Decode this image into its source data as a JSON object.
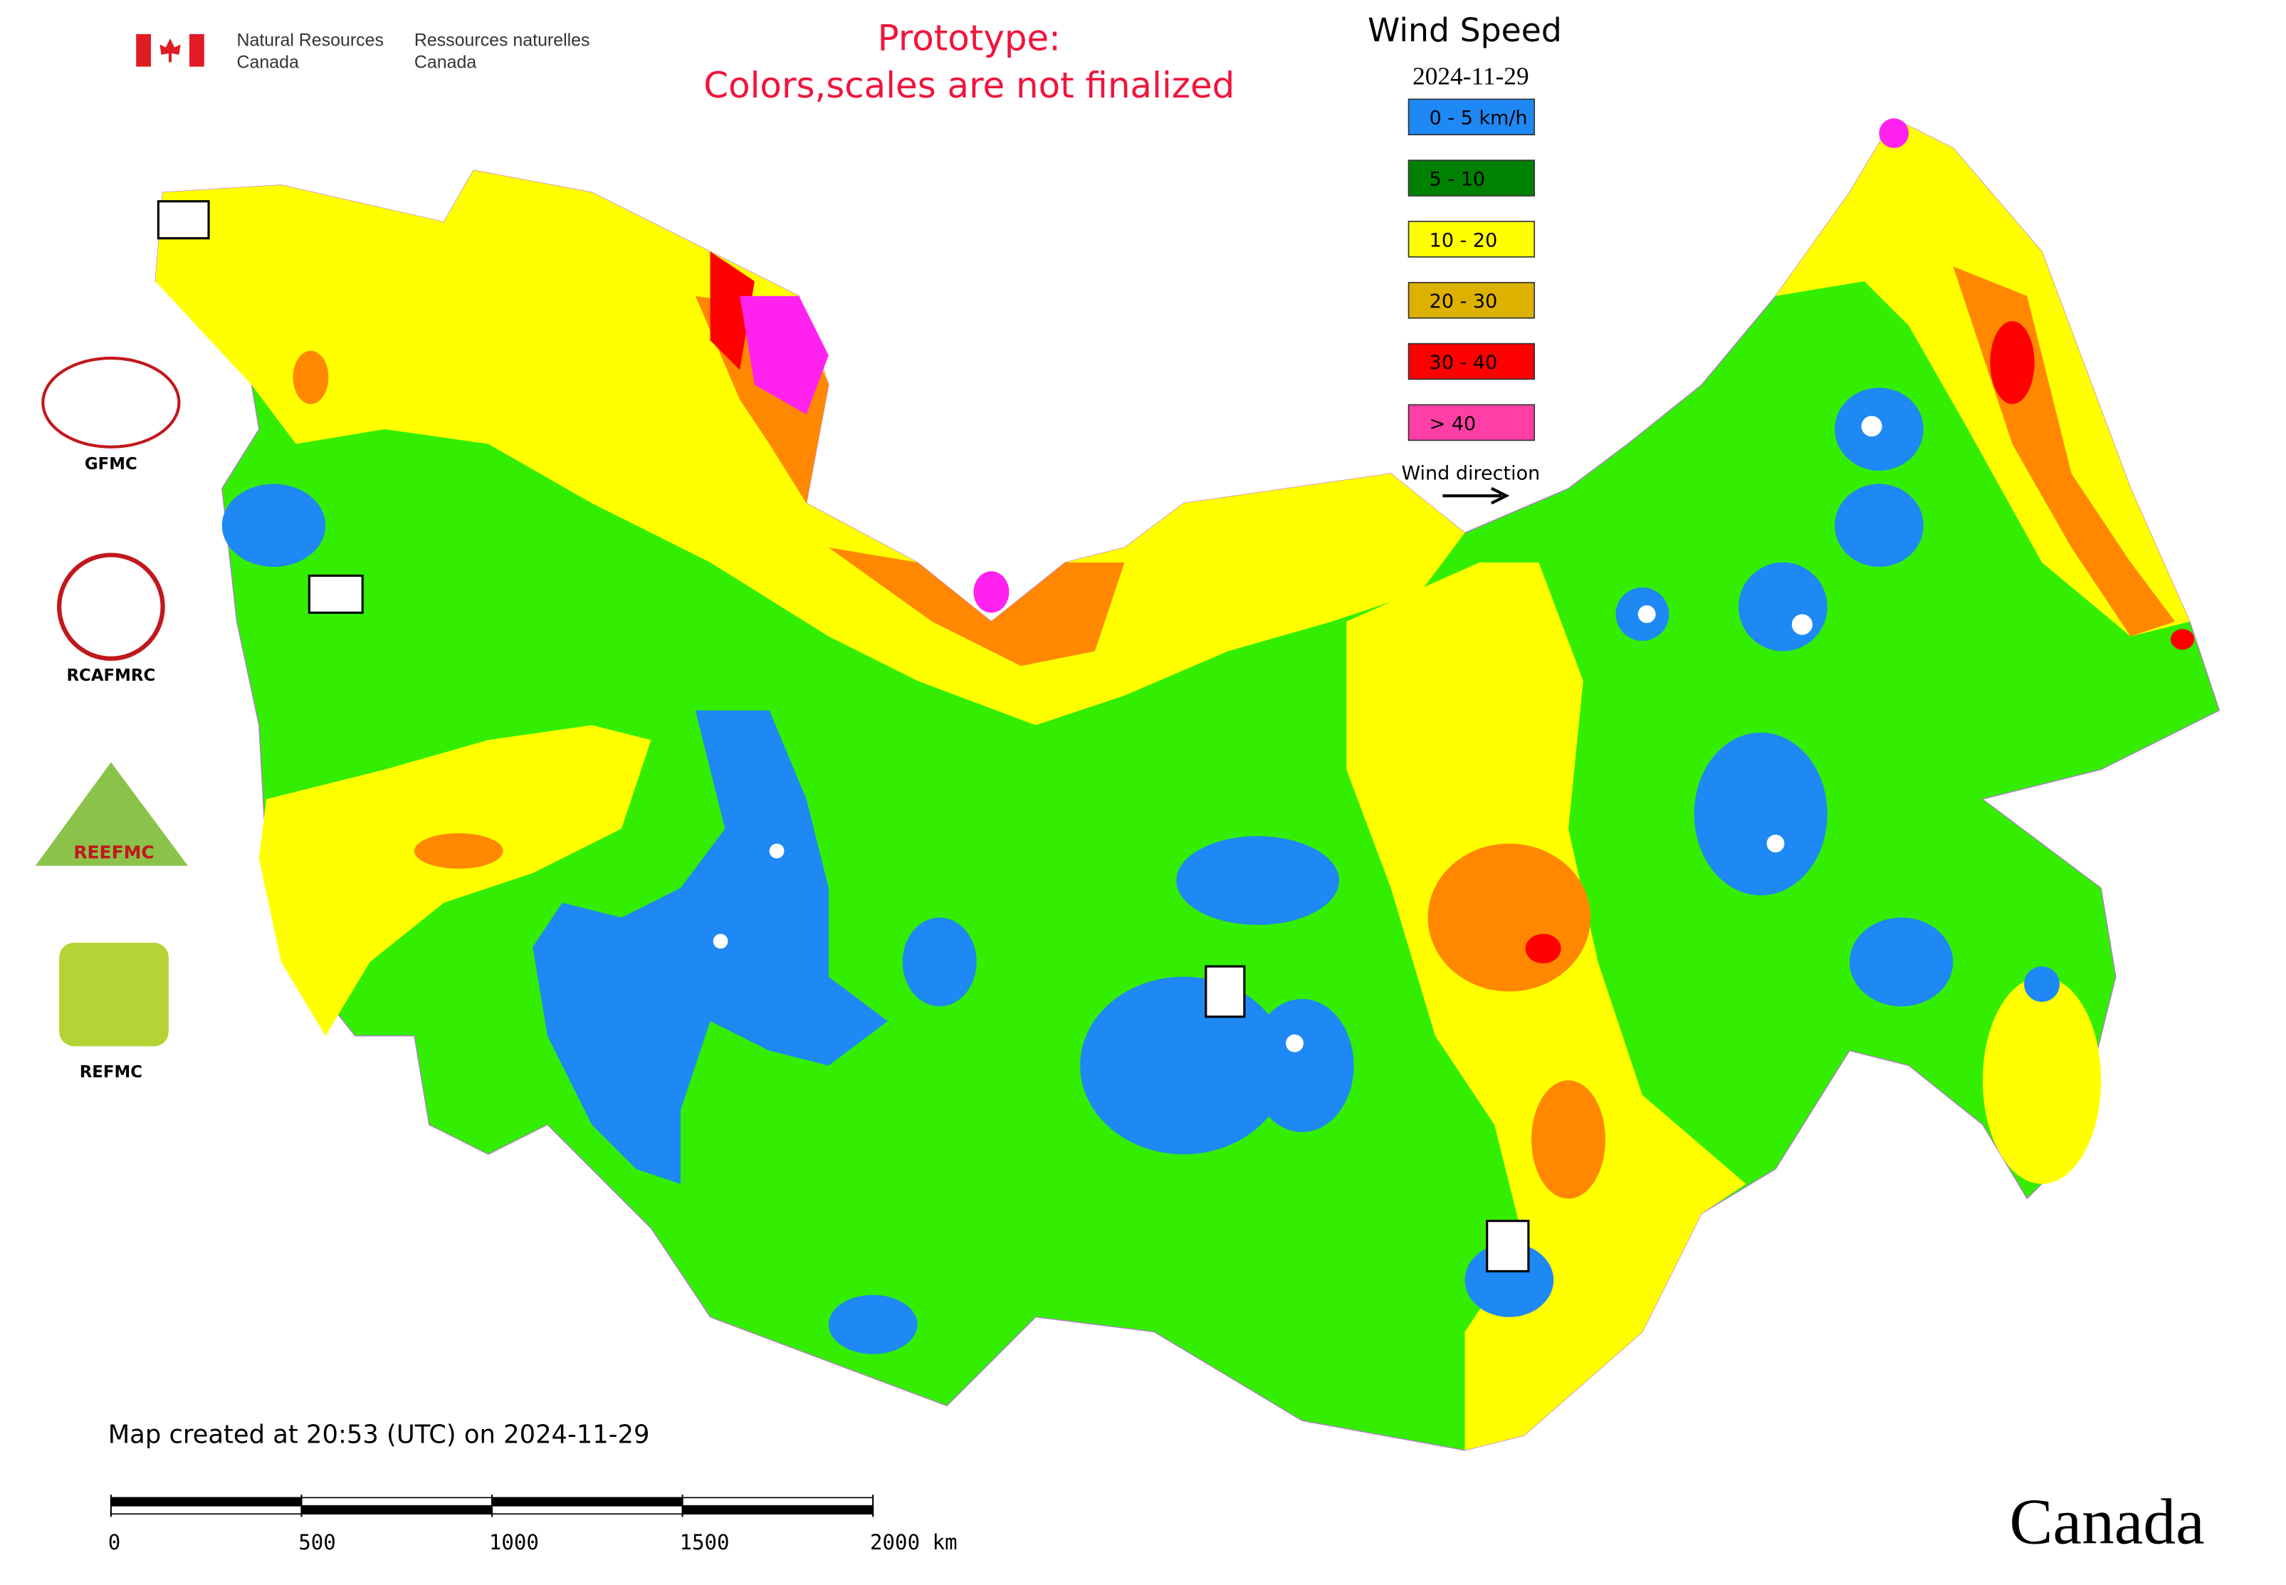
{
  "header": {
    "agency_en": [
      "Natural Resources",
      "Canada"
    ],
    "agency_fr": [
      "Ressources naturelles",
      "Canada"
    ],
    "notice": [
      "Prototype:",
      "Colors,scales are not finalized"
    ]
  },
  "legend": {
    "title": "Wind Speed",
    "date": "2024-11-29",
    "items": [
      {
        "label": "0 - 5 km/h",
        "color": "#1e88f5"
      },
      {
        "label": "5 - 10",
        "color": "#008000"
      },
      {
        "label": "10 - 20",
        "color": "#ffff00"
      },
      {
        "label": "20 - 30",
        "color": "#ddb100"
      },
      {
        "label": "30 - 40",
        "color": "#ff0000"
      },
      {
        "label": "> 40",
        "color": "#ff3fa6"
      }
    ],
    "direction": "Wind direction"
  },
  "logos": {
    "gfmc": "GFMC",
    "rcafmrc": "RCAFMRC",
    "reefmc": "REEFMC",
    "refmc": "REFMC"
  },
  "footer": {
    "created": "Map created at 20:53 (UTC) on 2024-11-29",
    "scale": {
      "ticks": [
        0,
        500,
        1000,
        1500,
        {
          "value": 2000,
          "label": "2000 km"
        }
      ]
    },
    "wordmark": "Canada"
  }
}
